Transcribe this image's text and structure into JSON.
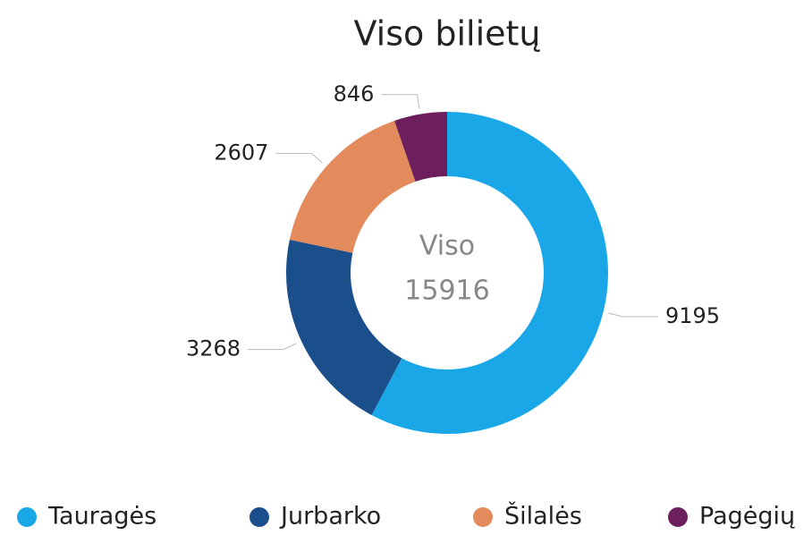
{
  "chart_data": {
    "type": "donut",
    "title": "Viso bilietų",
    "center_label": "Viso",
    "center_value": 15916,
    "categories": [
      "Tauragės",
      "Jurbarko",
      "Šilalės",
      "Pagėgių"
    ],
    "values": [
      9195,
      3268,
      2607,
      846
    ],
    "colors": [
      "#1aa7e8",
      "#1b4f8c",
      "#e38b5c",
      "#6c1f5c"
    ],
    "legend": "bottom"
  }
}
